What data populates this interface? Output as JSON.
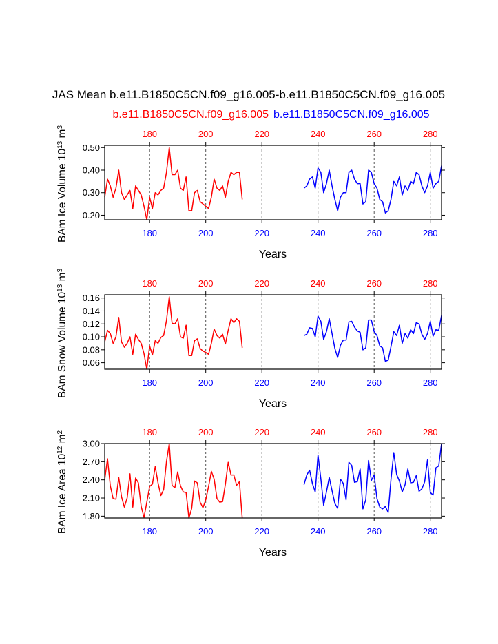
{
  "title": "JAS Mean b.e11.B1850C5CN.f09_g16.005-b.e11.B1850C5CN.f09_g16.005",
  "legend": [
    {
      "label": "b.e11.B1850C5CN.f09_g16.005",
      "color": "#ff0000"
    },
    {
      "label": "b.e11.B1850C5CN.f09_g16.005",
      "color": "#0000ff"
    }
  ],
  "colors": {
    "red": "#ff0000",
    "blue": "#0000ff",
    "black": "#000000",
    "grid": "#555555"
  },
  "chart_data": [
    {
      "type": "line",
      "ylabel_prefix": "BAm Ice Volume 10",
      "ylabel_exp": "13",
      "ylabel_unit": " m",
      "ylabel_unit_exp": "3",
      "xlabel": "Years",
      "xlim": [
        164,
        284
      ],
      "ylim": [
        0.18,
        0.51
      ],
      "yticks": [
        0.2,
        0.3,
        0.4,
        0.5
      ],
      "ytick_labels": [
        "0.20",
        "0.30",
        "0.40",
        "0.50"
      ],
      "xticks_bottom": [
        180,
        200,
        220,
        240,
        260,
        280
      ],
      "xtick_labels_bottom": [
        "180",
        "200",
        "220",
        "240",
        "260",
        "280"
      ],
      "xticks_top": [
        180,
        200,
        220,
        240,
        260,
        280
      ],
      "xtick_labels_top": [
        "180",
        "200",
        "220",
        "240",
        "260",
        "280"
      ],
      "series": [
        {
          "name": "b.e11.B1850C5CN.f09_g16.005",
          "color": "#ff0000",
          "x_start": 164,
          "values": [
            0.28,
            0.36,
            0.33,
            0.28,
            0.32,
            0.4,
            0.3,
            0.27,
            0.29,
            0.31,
            0.23,
            0.33,
            0.31,
            0.29,
            0.24,
            0.18,
            0.28,
            0.23,
            0.3,
            0.29,
            0.31,
            0.32,
            0.39,
            0.5,
            0.38,
            0.38,
            0.4,
            0.32,
            0.31,
            0.37,
            0.22,
            0.22,
            0.3,
            0.31,
            0.26,
            0.25,
            0.24,
            0.23,
            0.28,
            0.36,
            0.32,
            0.31,
            0.33,
            0.28,
            0.35,
            0.39,
            0.38,
            0.39,
            0.39,
            0.27
          ]
        },
        {
          "name": "b.e11.B1850C5CN.f09_g16.005",
          "color": "#0000ff",
          "x_start": 235,
          "values": [
            0.32,
            0.33,
            0.36,
            0.37,
            0.32,
            0.41,
            0.39,
            0.3,
            0.34,
            0.4,
            0.33,
            0.27,
            0.22,
            0.28,
            0.3,
            0.3,
            0.39,
            0.4,
            0.36,
            0.34,
            0.34,
            0.25,
            0.26,
            0.4,
            0.39,
            0.34,
            0.32,
            0.27,
            0.26,
            0.21,
            0.22,
            0.27,
            0.35,
            0.33,
            0.37,
            0.29,
            0.33,
            0.31,
            0.35,
            0.34,
            0.39,
            0.38,
            0.33,
            0.3,
            0.33,
            0.39,
            0.32,
            0.34,
            0.35,
            0.42
          ]
        }
      ]
    },
    {
      "type": "line",
      "ylabel_prefix": "BAm Snow Volume 10",
      "ylabel_exp": "13",
      "ylabel_unit": " m",
      "ylabel_unit_exp": "3",
      "xlabel": "Years",
      "xlim": [
        164,
        284
      ],
      "ylim": [
        0.05,
        0.165
      ],
      "yticks": [
        0.06,
        0.08,
        0.1,
        0.12,
        0.14,
        0.16
      ],
      "ytick_labels": [
        "0.06",
        "0.08",
        "0.10",
        "0.12",
        "0.14",
        "0.16"
      ],
      "xticks_bottom": [
        180,
        200,
        220,
        240,
        260,
        280
      ],
      "xtick_labels_bottom": [
        "180",
        "200",
        "220",
        "240",
        "260",
        "280"
      ],
      "xticks_top": [
        180,
        200,
        220,
        240,
        260,
        280
      ],
      "xtick_labels_top": [
        "180",
        "200",
        "220",
        "240",
        "260",
        "280"
      ],
      "series": [
        {
          "name": "b.e11.B1850C5CN.f09_g16.005",
          "color": "#ff0000",
          "x_start": 164,
          "values": [
            0.092,
            0.11,
            0.105,
            0.09,
            0.1,
            0.13,
            0.092,
            0.084,
            0.09,
            0.1,
            0.073,
            0.104,
            0.096,
            0.09,
            0.074,
            0.05,
            0.086,
            0.072,
            0.094,
            0.09,
            0.099,
            0.102,
            0.125,
            0.162,
            0.121,
            0.12,
            0.128,
            0.1,
            0.098,
            0.118,
            0.071,
            0.071,
            0.094,
            0.097,
            0.082,
            0.078,
            0.076,
            0.073,
            0.09,
            0.112,
            0.102,
            0.098,
            0.104,
            0.089,
            0.11,
            0.128,
            0.122,
            0.128,
            0.124,
            0.083
          ]
        },
        {
          "name": "b.e11.B1850C5CN.f09_g16.005",
          "color": "#0000ff",
          "x_start": 235,
          "values": [
            0.102,
            0.104,
            0.114,
            0.113,
            0.1,
            0.132,
            0.124,
            0.096,
            0.108,
            0.128,
            0.105,
            0.082,
            0.068,
            0.087,
            0.095,
            0.095,
            0.123,
            0.124,
            0.115,
            0.109,
            0.107,
            0.08,
            0.083,
            0.126,
            0.126,
            0.108,
            0.102,
            0.086,
            0.083,
            0.062,
            0.064,
            0.085,
            0.108,
            0.102,
            0.118,
            0.09,
            0.105,
            0.098,
            0.111,
            0.105,
            0.122,
            0.12,
            0.104,
            0.096,
            0.105,
            0.124,
            0.101,
            0.111,
            0.11,
            0.133
          ]
        }
      ]
    },
    {
      "type": "line",
      "ylabel_prefix": "BAm Ice Area 10",
      "ylabel_exp": "12",
      "ylabel_unit": " m",
      "ylabel_unit_exp": "2",
      "xlabel": "Years",
      "xlim": [
        164,
        284
      ],
      "ylim": [
        1.77,
        3.0
      ],
      "yticks": [
        1.8,
        2.1,
        2.4,
        2.7,
        3.0
      ],
      "ytick_labels": [
        "1.80",
        "2.10",
        "2.40",
        "2.70",
        "3.00"
      ],
      "xticks_bottom": [
        180,
        200,
        220,
        240,
        260,
        280
      ],
      "xtick_labels_bottom": [
        "180",
        "200",
        "220",
        "240",
        "260",
        "280"
      ],
      "xticks_top": [
        180,
        200,
        220,
        240,
        260,
        280
      ],
      "xtick_labels_top": [
        "180",
        "200",
        "220",
        "240",
        "260",
        "280"
      ],
      "series": [
        {
          "name": "b.e11.B1850C5CN.f09_g16.005",
          "color": "#ff0000",
          "x_start": 164,
          "values": [
            2.4,
            2.75,
            2.3,
            2.09,
            2.08,
            2.44,
            2.12,
            1.95,
            2.1,
            2.5,
            1.95,
            2.43,
            2.35,
            1.96,
            1.78,
            2.03,
            2.29,
            2.33,
            2.62,
            2.35,
            2.14,
            2.24,
            2.7,
            3.0,
            2.31,
            2.27,
            2.53,
            2.3,
            2.2,
            2.19,
            1.77,
            1.93,
            2.38,
            2.35,
            2.03,
            1.94,
            2.07,
            2.29,
            2.54,
            2.41,
            2.09,
            2.03,
            2.04,
            2.33,
            2.69,
            2.48,
            2.48,
            2.31,
            2.37,
            1.77
          ]
        },
        {
          "name": "b.e11.B1850C5CN.f09_g16.005",
          "color": "#0000ff",
          "x_start": 235,
          "values": [
            2.32,
            2.48,
            2.56,
            2.34,
            2.2,
            2.81,
            2.42,
            1.98,
            2.2,
            2.44,
            2.22,
            2.01,
            1.93,
            2.41,
            2.34,
            2.07,
            2.69,
            2.64,
            2.36,
            2.37,
            2.58,
            1.92,
            2.07,
            2.72,
            2.39,
            2.48,
            2.09,
            1.95,
            1.92,
            1.96,
            1.86,
            2.41,
            2.85,
            2.49,
            2.38,
            2.2,
            2.32,
            2.58,
            2.35,
            2.36,
            2.47,
            2.21,
            2.25,
            2.37,
            2.73,
            2.19,
            2.15,
            2.6,
            2.63,
            3.0
          ]
        }
      ]
    }
  ]
}
